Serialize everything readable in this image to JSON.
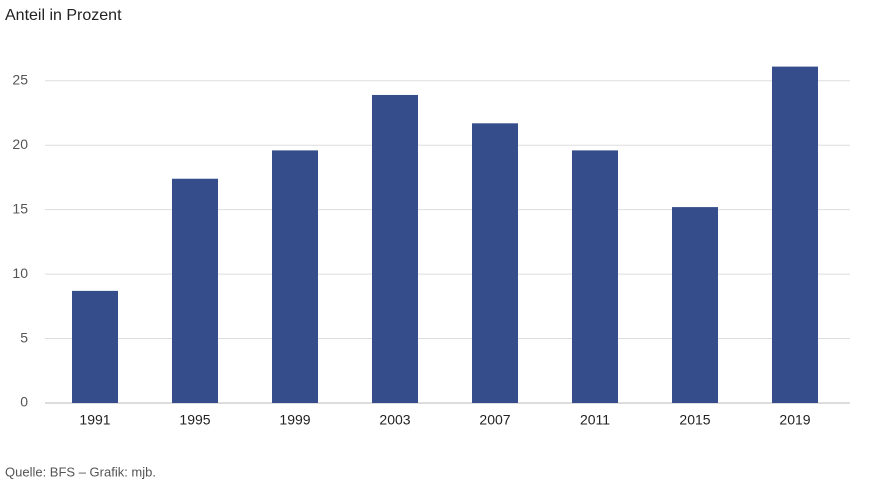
{
  "chart_data": {
    "type": "bar",
    "title": "Anteil in Prozent",
    "source": "Quelle: BFS – Grafik: mjb.",
    "categories": [
      "1991",
      "1995",
      "1999",
      "2003",
      "2007",
      "2011",
      "2015",
      "2019"
    ],
    "values": [
      8.7,
      17.4,
      19.6,
      23.9,
      21.7,
      19.6,
      15.2,
      26.1
    ],
    "color": "#354e8b",
    "ylim": [
      0,
      27
    ],
    "yticks": [
      0,
      5,
      10,
      15,
      20,
      25
    ],
    "grid": true
  }
}
